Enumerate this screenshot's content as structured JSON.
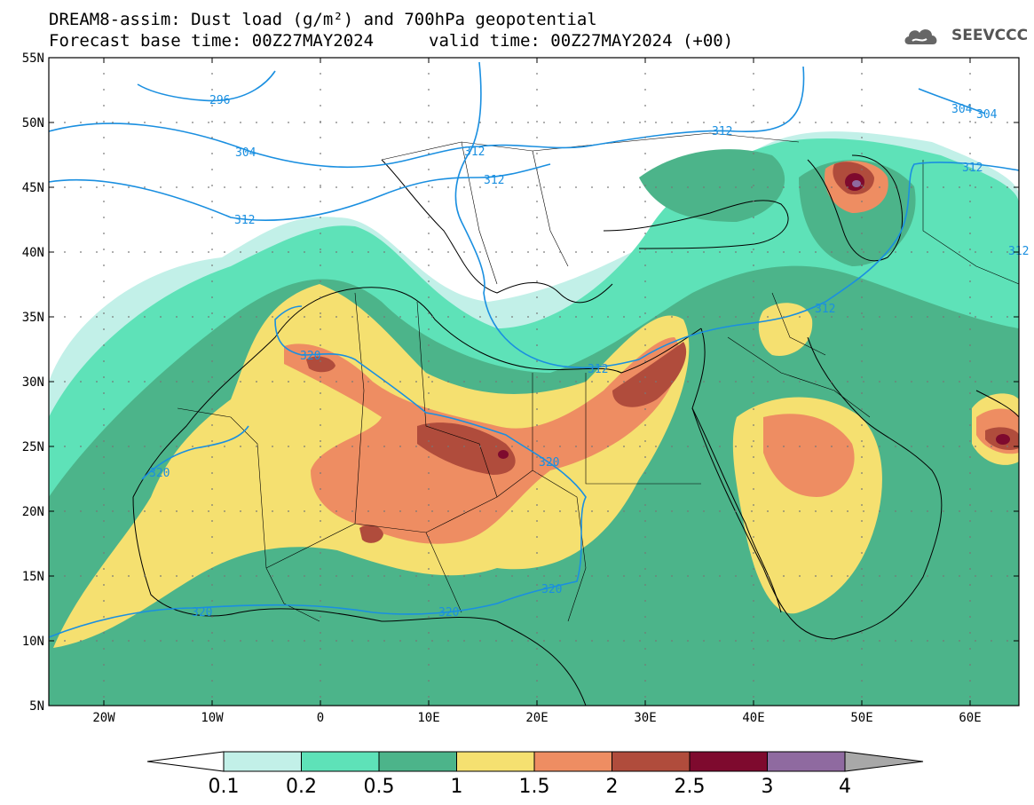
{
  "title_line1": "DREAM8-assim: Dust load (g/m²) and 700hPa geopotential",
  "title_line2": "Forecast base time: 00Z27MAY2024",
  "valid_time": "valid time: 00Z27MAY2024 (+00)",
  "logo_text": "SEEVCCC",
  "lat_labels": [
    "55N",
    "50N",
    "45N",
    "40N",
    "35N",
    "30N",
    "25N",
    "20N",
    "15N",
    "10N",
    "5N"
  ],
  "lon_labels": [
    "20W",
    "10W",
    "0",
    "10E",
    "20E",
    "30E",
    "40E",
    "50E",
    "60E"
  ],
  "colorbar": {
    "labels": [
      "0.1",
      "0.2",
      "0.5",
      "1",
      "1.5",
      "2",
      "2.5",
      "3",
      "4"
    ],
    "colors": [
      "#ffffff",
      "#c2f0e8",
      "#5ee2b8",
      "#4cb48a",
      "#f5e070",
      "#ee8d62",
      "#b04c3c",
      "#7e0a2e",
      "#8f6aa0",
      "#a8a8a8"
    ]
  },
  "contour_labels": [
    "296",
    "304",
    "304",
    "304",
    "312",
    "312",
    "312",
    "312",
    "312",
    "312",
    "312",
    "312",
    "320",
    "320",
    "320",
    "320",
    "320",
    "320"
  ],
  "colors": {
    "contour": "#1a8fe0",
    "border": "#000000"
  }
}
